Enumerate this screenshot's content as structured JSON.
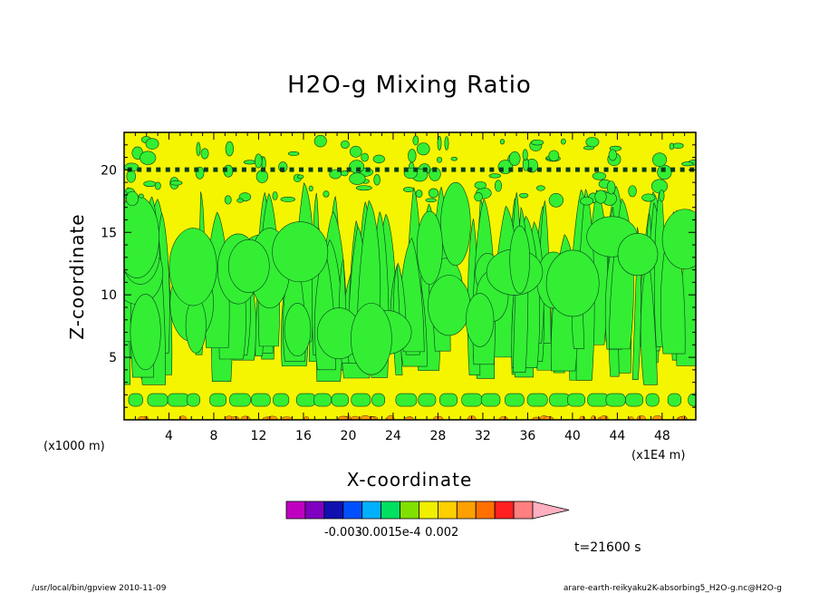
{
  "chart_data": {
    "type": "heatmap",
    "title": "H2O-g Mixing Ratio",
    "xlabel": "X-coordinate",
    "ylabel": "Z-coordinate",
    "x_unit": "(x1E4 m)",
    "y_unit": "(x1000 m)",
    "xlim": [
      0,
      51
    ],
    "ylim": [
      0,
      23
    ],
    "x_ticks": [
      "4",
      "8",
      "12",
      "16",
      "20",
      "24",
      "28",
      "32",
      "36",
      "40",
      "44",
      "48"
    ],
    "y_ticks": [
      "5",
      "10",
      "15",
      "20"
    ],
    "colorbar": {
      "colors": [
        "#c000c0",
        "#8000c0",
        "#1010b0",
        "#0050ff",
        "#00b0ff",
        "#00e060",
        "#80e000",
        "#f0f000",
        "#ffd000",
        "#ffa000",
        "#ff7000",
        "#ff2020",
        "#ff8080",
        "#ffb0c0"
      ],
      "tick_labels": [
        "-0.003",
        "-0.001",
        "5e-4",
        "0.002"
      ]
    },
    "fill_colors": {
      "background": "#f5f500",
      "moist": "#33ee33",
      "dry": "#ff9900"
    },
    "time_label": "t=21600 s"
  },
  "footer": {
    "left": "/usr/local/bin/gpview   2010-11-09",
    "right": "arare-earth-reikyaku2K-absorbing5_H2O-g.nc@H2O-g"
  }
}
